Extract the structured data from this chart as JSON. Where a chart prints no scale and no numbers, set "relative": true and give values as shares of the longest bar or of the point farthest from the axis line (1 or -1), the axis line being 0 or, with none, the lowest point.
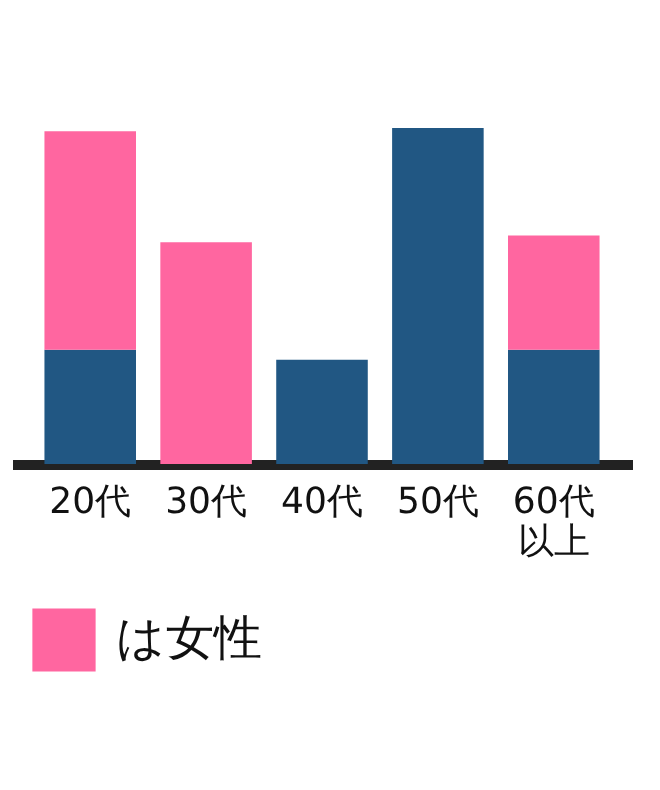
{
  "chart_data": {
    "type": "bar",
    "stacked": true,
    "relative": true,
    "categories": [
      "20代",
      "30代",
      "40代",
      "50代",
      "60代以上"
    ],
    "series": [
      {
        "color": "#215783",
        "values": [
          0.34,
          0,
          0.31,
          1,
          0.34
        ]
      },
      {
        "name": "は女性",
        "color": "#ff66a0",
        "values": [
          0.65,
          0.66,
          0,
          0,
          0.34
        ]
      }
    ],
    "legend": "bottom left"
  }
}
